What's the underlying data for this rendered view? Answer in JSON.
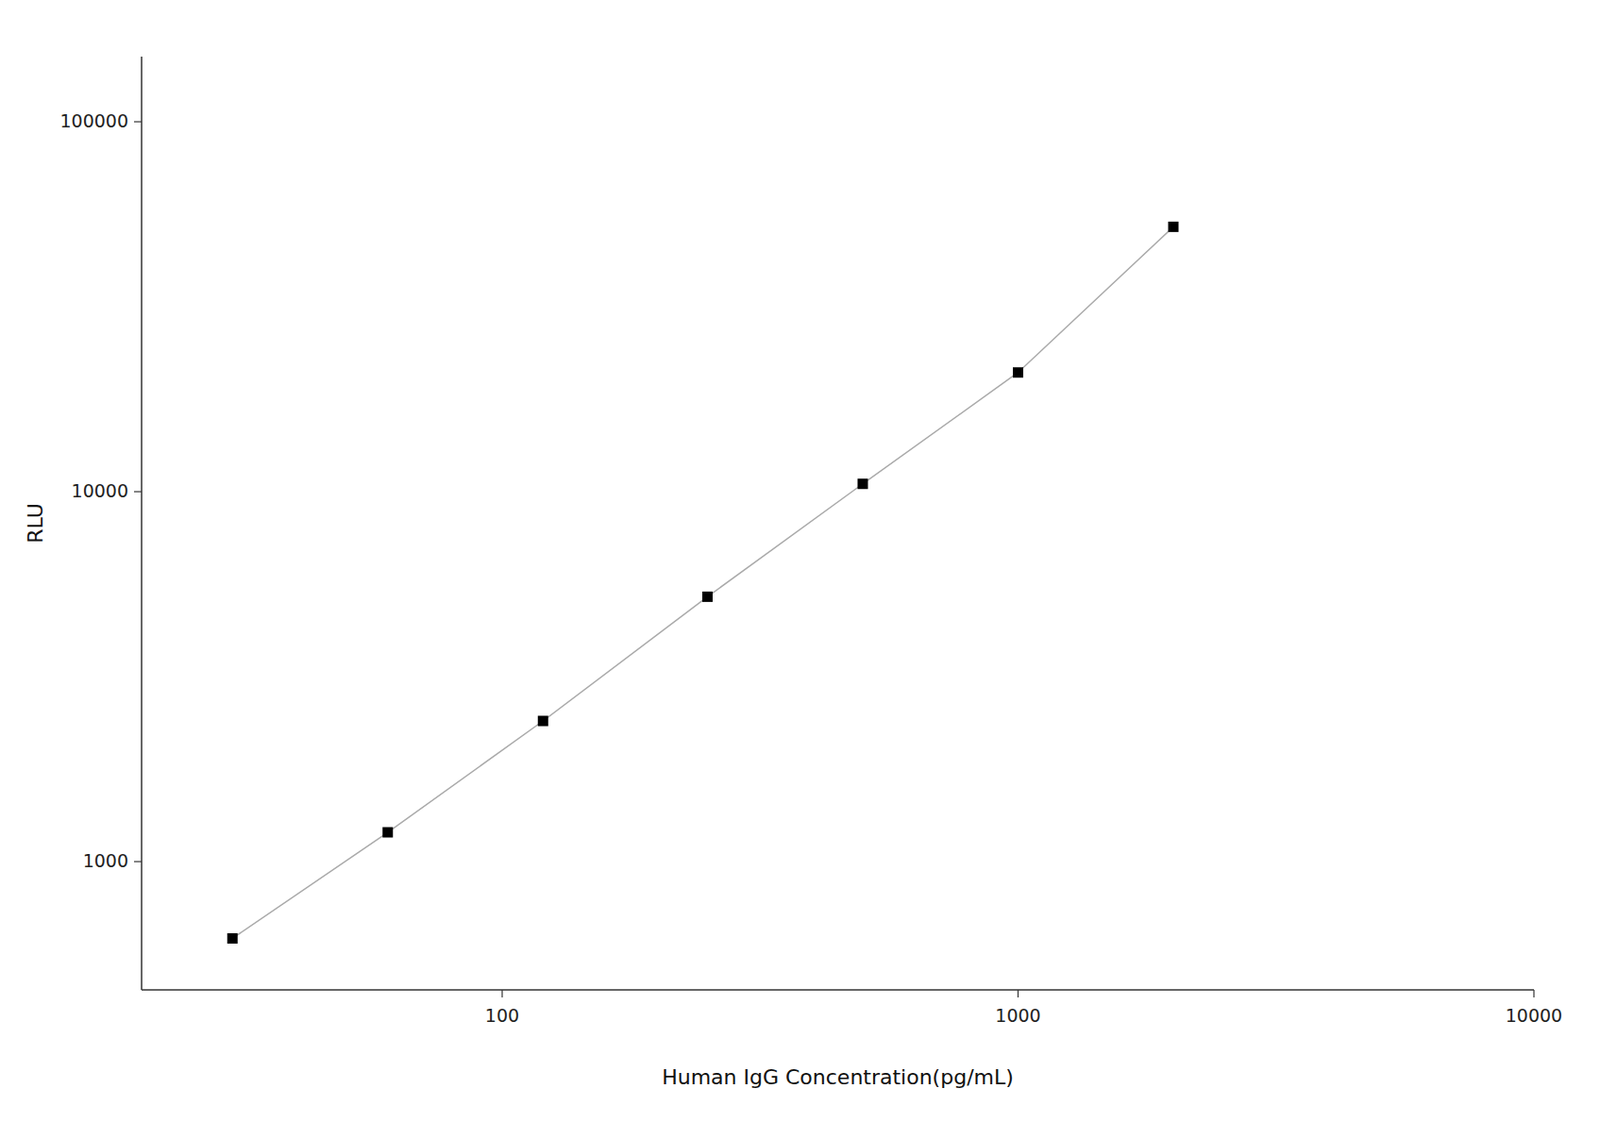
{
  "chart_data": {
    "type": "line",
    "x_label": "Human IgG Concentration(pg/mL)",
    "y_label": "RLU",
    "x": [
      30,
      60,
      120,
      250,
      500,
      1000,
      2000
    ],
    "values": [
      620,
      1200,
      2400,
      5200,
      10500,
      21000,
      52000
    ],
    "color": "#000000",
    "marker": "square",
    "line_style": "solid",
    "log": true,
    "grid": false,
    "xlim": [
      20,
      10000
    ],
    "ylim": [
      450,
      150000
    ],
    "xticks": [
      100,
      1000,
      10000
    ],
    "yticks": [
      1000,
      10000,
      100000
    ]
  }
}
